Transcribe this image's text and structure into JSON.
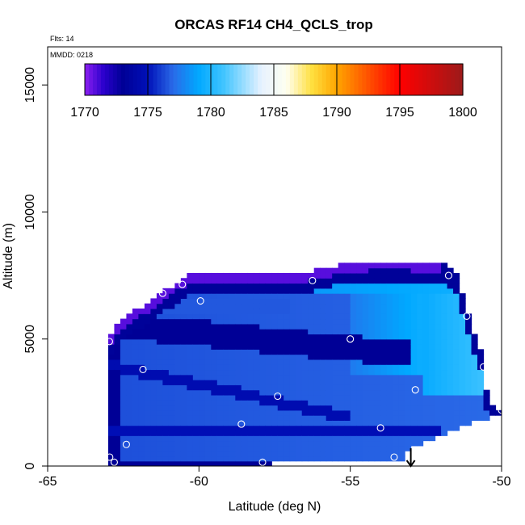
{
  "chart_data": {
    "type": "heatmap",
    "title": "ORCAS RF14 CH4_QCLS_trop",
    "flights_label": "Flts: 14",
    "date_label": "MMDD: 0218",
    "xlabel": "Latitude (deg N)",
    "ylabel": "Altitude (m)",
    "xlim": [
      -65,
      -50
    ],
    "ylim": [
      0,
      16500
    ],
    "x_ticks": [
      -65,
      -60,
      -55,
      -50
    ],
    "x_tick_labels": [
      "-65",
      "-60",
      "-55",
      "-50"
    ],
    "y_ticks": [
      0,
      5000,
      10000,
      15000
    ],
    "y_tick_labels": [
      "0",
      "5000",
      "10000",
      "15000"
    ],
    "colorbar": {
      "min": 1770,
      "max": 1800,
      "ticks": [
        1770,
        1775,
        1780,
        1785,
        1790,
        1795,
        1800
      ],
      "tick_labels": [
        "1770",
        "1775",
        "1780",
        "1785",
        "1790",
        "1795",
        "1800"
      ],
      "color_stops": [
        {
          "value": 1770,
          "color": "#8B1FF0"
        },
        {
          "value": 1771.5,
          "color": "#2A00CC"
        },
        {
          "value": 1773,
          "color": "#000096"
        },
        {
          "value": 1775,
          "color": "#0010B8"
        },
        {
          "value": 1777,
          "color": "#2A6AE8"
        },
        {
          "value": 1779,
          "color": "#00A8FF"
        },
        {
          "value": 1781,
          "color": "#40C4FF"
        },
        {
          "value": 1784,
          "color": "#E6F2FF"
        },
        {
          "value": 1786,
          "color": "#FFFFF0"
        },
        {
          "value": 1788,
          "color": "#FFE040"
        },
        {
          "value": 1790,
          "color": "#FFA500"
        },
        {
          "value": 1793,
          "color": "#FF4000"
        },
        {
          "value": 1795,
          "color": "#FF0000"
        },
        {
          "value": 1800,
          "color": "#9C1A1A"
        }
      ]
    },
    "curtain": {
      "lat_min": -63.0,
      "lat_max": -50.0,
      "top_profile": [
        {
          "lat": -63.0,
          "alt": 4900
        },
        {
          "lat": -62.7,
          "alt": 5500
        },
        {
          "lat": -62.0,
          "alt": 6100
        },
        {
          "lat": -61.5,
          "alt": 6500
        },
        {
          "lat": -61.0,
          "alt": 6900
        },
        {
          "lat": -60.4,
          "alt": 7400
        },
        {
          "lat": -58.5,
          "alt": 7500
        },
        {
          "lat": -56.5,
          "alt": 7500
        },
        {
          "lat": -55.5,
          "alt": 7800
        },
        {
          "lat": -54.0,
          "alt": 8000
        },
        {
          "lat": -52.0,
          "alt": 7900
        },
        {
          "lat": -51.5,
          "alt": 7600
        },
        {
          "lat": -51.2,
          "alt": 6300
        },
        {
          "lat": -50.6,
          "alt": 4100
        },
        {
          "lat": -50.5,
          "alt": 3000
        },
        {
          "lat": -50.3,
          "alt": 2300
        },
        {
          "lat": -50.0,
          "alt": 2100
        }
      ],
      "bottom_profile": [
        {
          "lat": -63.0,
          "alt": 0
        },
        {
          "lat": -57.5,
          "alt": 0
        },
        {
          "lat": -57.5,
          "alt": 200
        },
        {
          "lat": -53.2,
          "alt": 300
        },
        {
          "lat": -53.0,
          "alt": 700
        },
        {
          "lat": -52.0,
          "alt": 1200
        },
        {
          "lat": -51.0,
          "alt": 1700
        },
        {
          "lat": -50.0,
          "alt": 2000
        }
      ]
    },
    "flight_points": [
      {
        "lat": -62.96,
        "alt": 4900
      },
      {
        "lat": -61.85,
        "alt": 3800
      },
      {
        "lat": -61.2,
        "alt": 6800
      },
      {
        "lat": -60.55,
        "alt": 7150
      },
      {
        "lat": -59.95,
        "alt": 6500
      },
      {
        "lat": -56.25,
        "alt": 7300
      },
      {
        "lat": -55.0,
        "alt": 5000
      },
      {
        "lat": -57.4,
        "alt": 2750
      },
      {
        "lat": -58.6,
        "alt": 1650
      },
      {
        "lat": -62.4,
        "alt": 850
      },
      {
        "lat": -62.95,
        "alt": 350
      },
      {
        "lat": -62.8,
        "alt": 150
      },
      {
        "lat": -57.9,
        "alt": 150
      },
      {
        "lat": -53.55,
        "alt": 350
      },
      {
        "lat": -54.0,
        "alt": 1500
      },
      {
        "lat": -52.85,
        "alt": 3000
      },
      {
        "lat": -51.75,
        "alt": 7500
      },
      {
        "lat": -51.15,
        "alt": 5900
      },
      {
        "lat": -50.6,
        "alt": 3900
      },
      {
        "lat": -50.0,
        "alt": 2200
      }
    ],
    "arrow_marker": {
      "lat": -53.0,
      "alt_from": 700,
      "alt_to": 0
    }
  }
}
